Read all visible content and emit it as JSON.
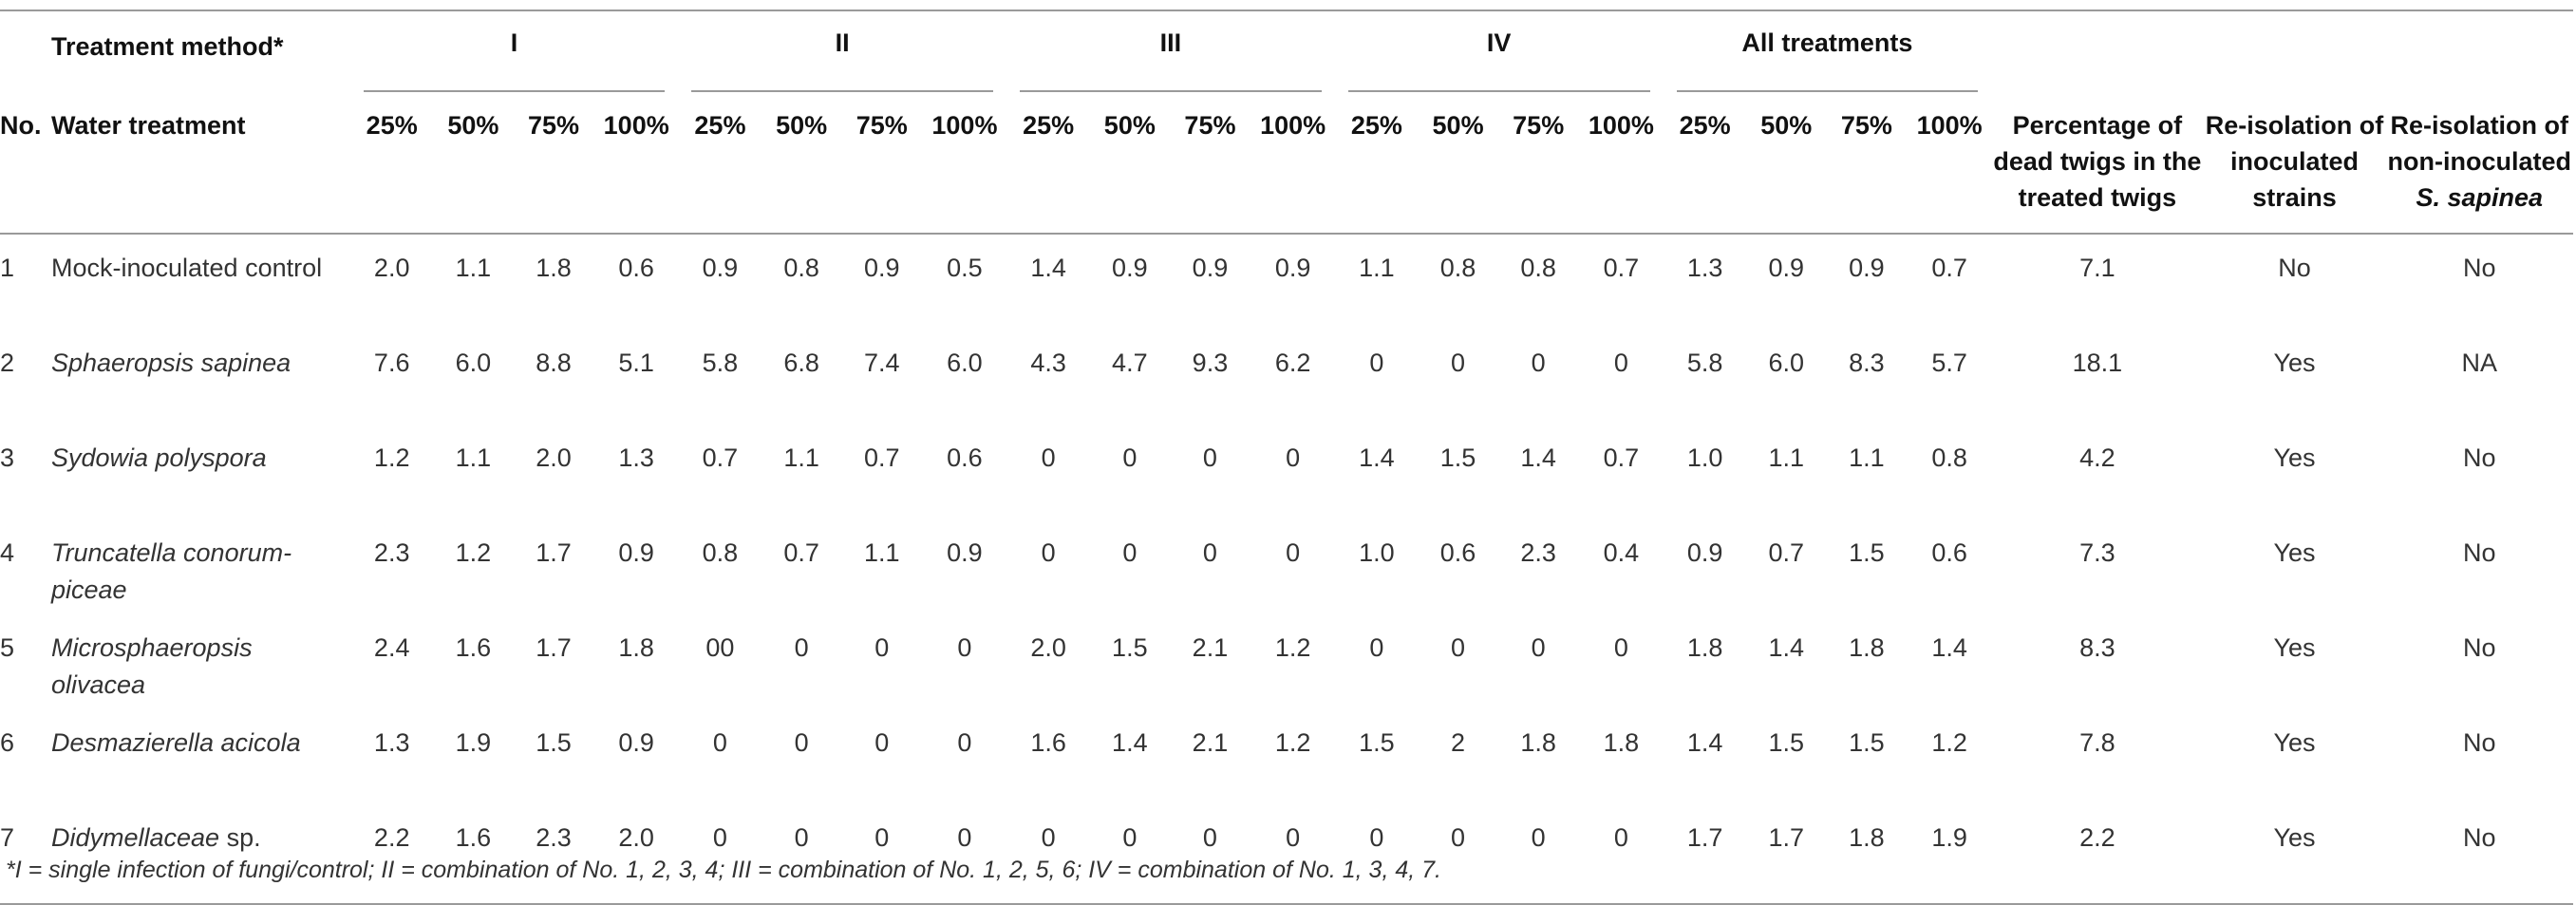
{
  "header": {
    "treatment_method": "Treatment method*",
    "groups": [
      "I",
      "II",
      "III",
      "IV",
      "All treatments"
    ],
    "no": "No.",
    "water_treatment": "Water treatment",
    "pcts": [
      "25%",
      "50%",
      "75%",
      "100%"
    ],
    "dead_twigs": "Percentage of dead twigs in the treated twigs",
    "reisolation_inoculated": "Re-isolation of inoculated strains",
    "reisolation_non_prefix": "Re-isolation of non-inoculated",
    "reisolation_non_species": "S. sapinea"
  },
  "rows": [
    {
      "no": "1",
      "name": "Mock-inoculated control",
      "italic": false,
      "suffix": "",
      "values": [
        "2.0",
        "1.1",
        "1.8",
        "0.6",
        "0.9",
        "0.8",
        "0.9",
        "0.5",
        "1.4",
        "0.9",
        "0.9",
        "0.9",
        "1.1",
        "0.8",
        "0.8",
        "0.7",
        "1.3",
        "0.9",
        "0.9",
        "0.7"
      ],
      "dead": "7.1",
      "reiso": "No",
      "reiso_non": "No"
    },
    {
      "no": "2",
      "name": "Sphaeropsis sapinea",
      "italic": true,
      "suffix": "",
      "values": [
        "7.6",
        "6.0",
        "8.8",
        "5.1",
        "5.8",
        "6.8",
        "7.4",
        "6.0",
        "4.3",
        "4.7",
        "9.3",
        "6.2",
        "0",
        "0",
        "0",
        "0",
        "5.8",
        "6.0",
        "8.3",
        "5.7"
      ],
      "dead": "18.1",
      "reiso": "Yes",
      "reiso_non": "NA"
    },
    {
      "no": "3",
      "name": "Sydowia polyspora",
      "italic": true,
      "suffix": "",
      "values": [
        "1.2",
        "1.1",
        "2.0",
        "1.3",
        "0.7",
        "1.1",
        "0.7",
        "0.6",
        "0",
        "0",
        "0",
        "0",
        "1.4",
        "1.5",
        "1.4",
        "0.7",
        "1.0",
        "1.1",
        "1.1",
        "0.8"
      ],
      "dead": "4.2",
      "reiso": "Yes",
      "reiso_non": "No"
    },
    {
      "no": "4",
      "name": "Truncatella conorum-piceae",
      "italic": true,
      "suffix": "",
      "values": [
        "2.3",
        "1.2",
        "1.7",
        "0.9",
        "0.8",
        "0.7",
        "1.1",
        "0.9",
        "0",
        "0",
        "0",
        "0",
        "1.0",
        "0.6",
        "2.3",
        "0.4",
        "0.9",
        "0.7",
        "1.5",
        "0.6"
      ],
      "dead": "7.3",
      "reiso": "Yes",
      "reiso_non": "No"
    },
    {
      "no": "5",
      "name": "Microsphaeropsis olivacea",
      "italic": true,
      "suffix": "",
      "values": [
        "2.4",
        "1.6",
        "1.7",
        "1.8",
        "00",
        "0",
        "0",
        "0",
        "2.0",
        "1.5",
        "2.1",
        "1.2",
        "0",
        "0",
        "0",
        "0",
        "1.8",
        "1.4",
        "1.8",
        "1.4"
      ],
      "dead": "8.3",
      "reiso": "Yes",
      "reiso_non": "No"
    },
    {
      "no": "6",
      "name": "Desmazierella acicola",
      "italic": true,
      "suffix": "",
      "values": [
        "1.3",
        "1.9",
        "1.5",
        "0.9",
        "0",
        "0",
        "0",
        "0",
        "1.6",
        "1.4",
        "2.1",
        "1.2",
        "1.5",
        "2",
        "1.8",
        "1.8",
        "1.4",
        "1.5",
        "1.5",
        "1.2"
      ],
      "dead": "7.8",
      "reiso": "Yes",
      "reiso_non": "No"
    },
    {
      "no": "7",
      "name": "Didymellaceae",
      "italic": true,
      "suffix": " sp.",
      "values": [
        "2.2",
        "1.6",
        "2.3",
        "2.0",
        "0",
        "0",
        "0",
        "0",
        "0",
        "0",
        "0",
        "0",
        "0",
        "0",
        "0",
        "0",
        "1.7",
        "1.7",
        "1.8",
        "1.9"
      ],
      "dead": "2.2",
      "reiso": "Yes",
      "reiso_non": "No"
    }
  ],
  "footnote": "*I = single infection of fungi/control; II = combination of No. 1, 2, 3, 4; III = combination of No. 1, 2, 5, 6; IV = combination of No. 1, 3, 4, 7."
}
